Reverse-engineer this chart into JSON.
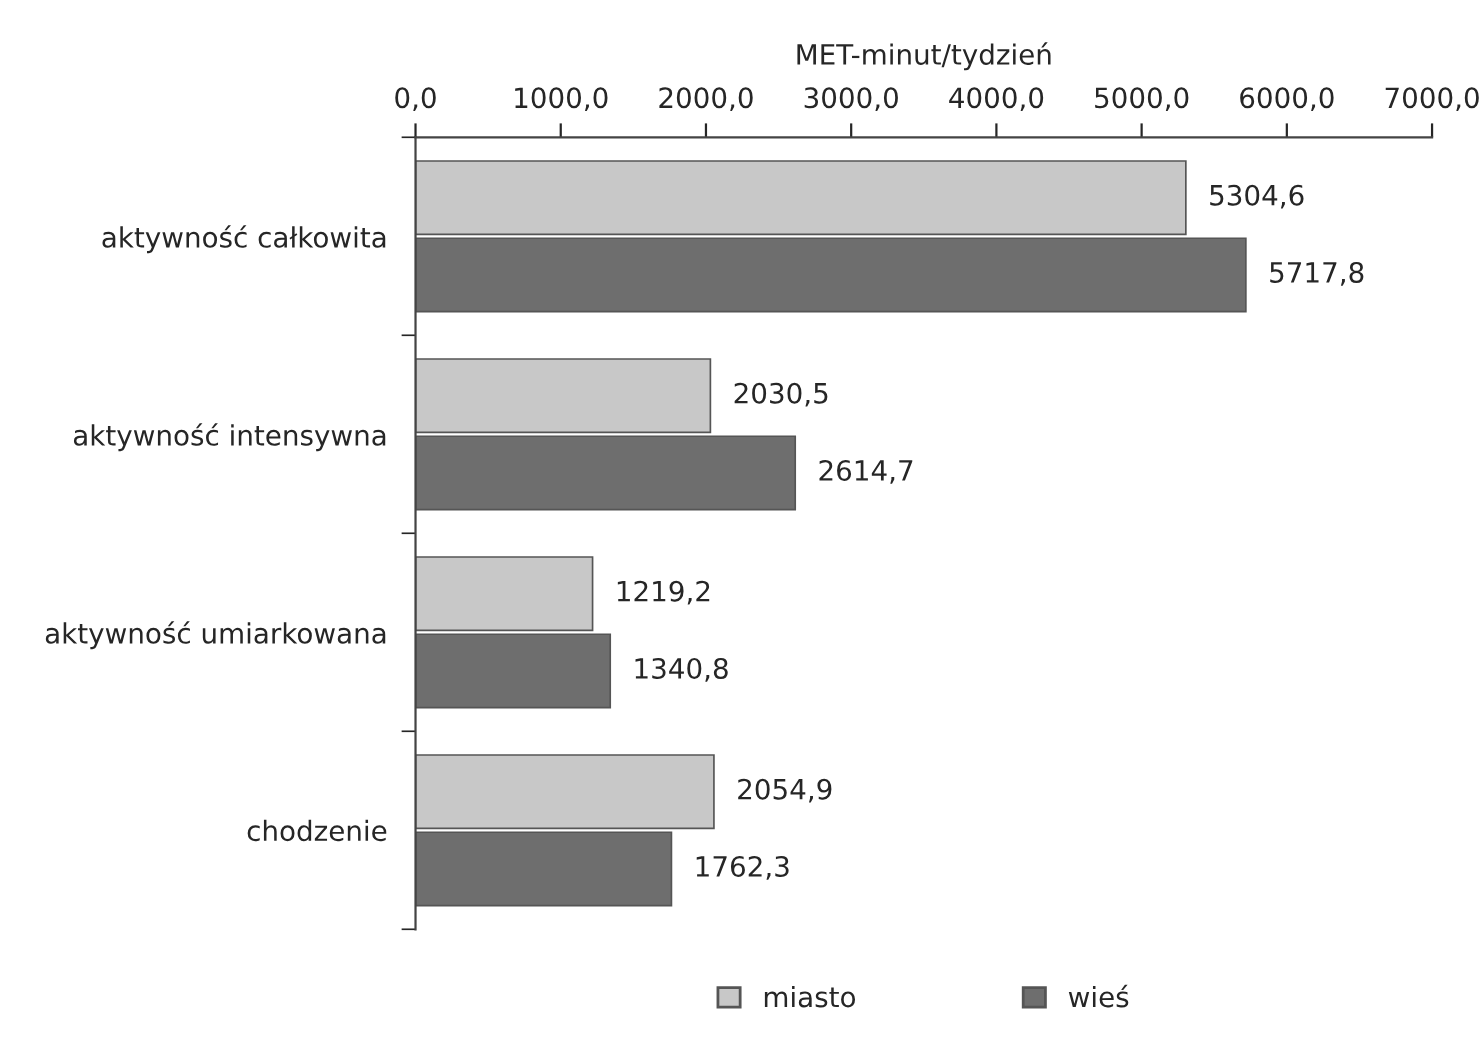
{
  "chart_data": {
    "type": "bar",
    "orientation": "horizontal",
    "xlabel": "MET-minut/tydzień",
    "categories": [
      "aktywność całkowita",
      "aktywność intensywna",
      "aktywność umiarkowana",
      "chodzenie"
    ],
    "series": [
      {
        "name": "miasto",
        "color": "#c8c8c8",
        "values": [
          5304.6,
          2030.5,
          1219.2,
          2054.9
        ],
        "value_labels": [
          "5304,6",
          "2030,5",
          "1219,2",
          "2054,9"
        ]
      },
      {
        "name": "wieś",
        "color": "#6e6e6e",
        "values": [
          5717.8,
          2614.7,
          1340.8,
          1762.3
        ],
        "value_labels": [
          "5717,8",
          "2614,7",
          "1340,8",
          "1762,3"
        ]
      }
    ],
    "xlim": [
      0,
      7000
    ],
    "xticks": [
      {
        "value": 0,
        "label": "0,0"
      },
      {
        "value": 1000,
        "label": "1000,0"
      },
      {
        "value": 2000,
        "label": "2000,0"
      },
      {
        "value": 3000,
        "label": "3000,0"
      },
      {
        "value": 4000,
        "label": "4000,0"
      },
      {
        "value": 5000,
        "label": "5000,0"
      },
      {
        "value": 6000,
        "label": "6000,0"
      },
      {
        "value": 7000,
        "label": "7000,0"
      }
    ],
    "grid": false,
    "legend": "bottom"
  }
}
